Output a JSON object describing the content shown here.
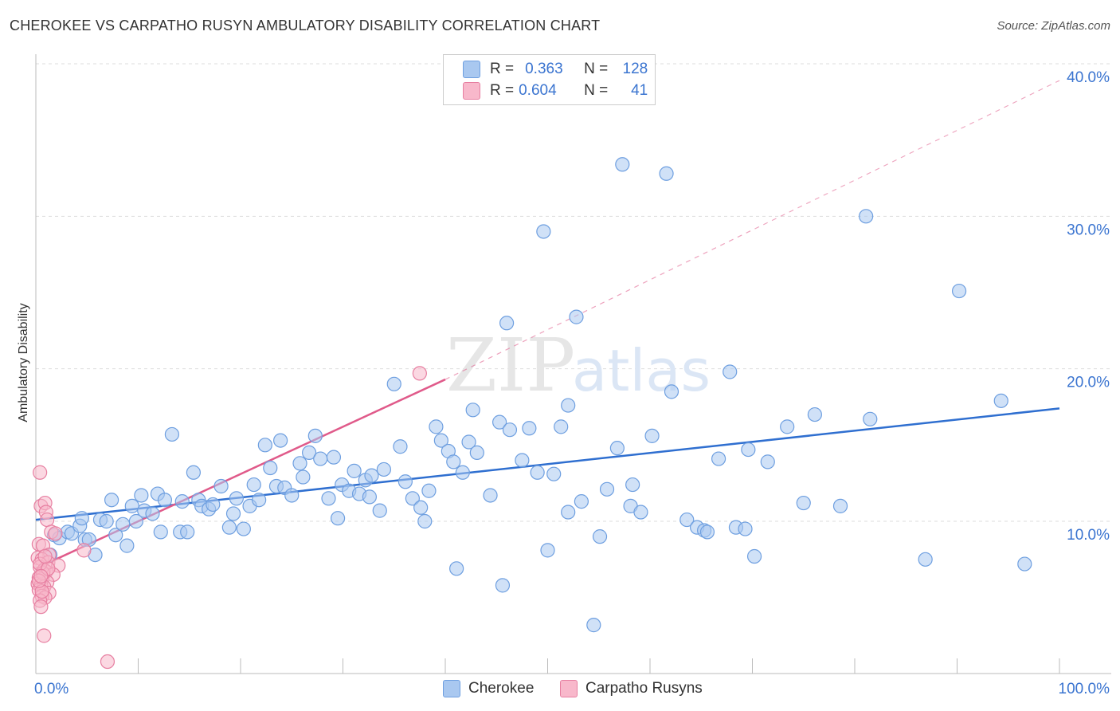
{
  "title": "CHEROKEE VS CARPATHO RUSYN AMBULATORY DISABILITY CORRELATION CHART",
  "source": "Source: ZipAtlas.com",
  "watermark": {
    "zip": "ZIP",
    "atlas": "atlas"
  },
  "legend": {
    "rows": [
      {
        "r_label": "R =",
        "r_value": "0.363",
        "n_label": "N =",
        "n_value": "128",
        "color": "#a9c8f0",
        "stroke": "#6e9fe0"
      },
      {
        "r_label": "R =",
        "r_value": "0.604",
        "n_label": "N =",
        "n_value": "41",
        "color": "#f8b8cb",
        "stroke": "#e77fa1"
      }
    ]
  },
  "bottom_legend": [
    {
      "label": "Cherokee",
      "color": "#a9c8f0",
      "stroke": "#6e9fe0"
    },
    {
      "label": "Carpatho Rusyns",
      "color": "#f8b8cb",
      "stroke": "#e77fa1"
    }
  ],
  "chart_data": {
    "type": "scatter",
    "title": "CHEROKEE VS CARPATHO RUSYN AMBULATORY DISABILITY CORRELATION CHART",
    "xlabel": "",
    "ylabel": "Ambulatory Disability",
    "xlim": [
      0,
      100
    ],
    "ylim": [
      0,
      42
    ],
    "x_tick_labels": [
      "0.0%",
      "100.0%"
    ],
    "y_ticks": [
      10,
      20,
      30,
      40
    ],
    "y_tick_labels": [
      "10.0%",
      "20.0%",
      "30.0%",
      "40.0%"
    ],
    "grid": true,
    "legend_position": "top-center",
    "series": [
      {
        "name": "Cherokee",
        "color": "#a9c8f0",
        "stroke": "#6e9fe0",
        "line_color": "#2f6fd0",
        "trend": {
          "x": [
            0,
            100
          ],
          "y": [
            10.1,
            17.4
          ]
        },
        "points": [
          [
            1.4,
            7.8
          ],
          [
            1.8,
            9.1
          ],
          [
            2.3,
            8.9
          ],
          [
            3.1,
            9.3
          ],
          [
            3.5,
            9.2
          ],
          [
            4.3,
            9.7
          ],
          [
            4.5,
            10.2
          ],
          [
            4.8,
            8.8
          ],
          [
            5.2,
            8.8
          ],
          [
            5.8,
            7.8
          ],
          [
            6.3,
            10.1
          ],
          [
            6.9,
            10.0
          ],
          [
            7.4,
            11.4
          ],
          [
            7.8,
            9.1
          ],
          [
            8.5,
            9.8
          ],
          [
            8.9,
            8.4
          ],
          [
            9.4,
            11.0
          ],
          [
            9.8,
            10.0
          ],
          [
            10.3,
            11.7
          ],
          [
            10.6,
            10.7
          ],
          [
            11.4,
            10.5
          ],
          [
            11.9,
            11.8
          ],
          [
            12.2,
            9.3
          ],
          [
            12.6,
            11.4
          ],
          [
            13.3,
            15.7
          ],
          [
            14.1,
            9.3
          ],
          [
            14.3,
            11.3
          ],
          [
            14.8,
            9.3
          ],
          [
            15.4,
            13.2
          ],
          [
            15.9,
            11.4
          ],
          [
            16.2,
            11.0
          ],
          [
            16.9,
            10.8
          ],
          [
            17.3,
            11.1
          ],
          [
            18.1,
            12.3
          ],
          [
            18.9,
            9.6
          ],
          [
            19.3,
            10.5
          ],
          [
            19.6,
            11.5
          ],
          [
            20.3,
            9.5
          ],
          [
            20.9,
            11.0
          ],
          [
            21.3,
            12.4
          ],
          [
            21.8,
            11.4
          ],
          [
            22.4,
            15.0
          ],
          [
            22.9,
            13.5
          ],
          [
            23.5,
            12.3
          ],
          [
            23.9,
            15.3
          ],
          [
            24.3,
            12.2
          ],
          [
            25.0,
            11.7
          ],
          [
            25.8,
            13.8
          ],
          [
            26.1,
            12.9
          ],
          [
            26.7,
            14.5
          ],
          [
            27.3,
            15.6
          ],
          [
            27.8,
            14.1
          ],
          [
            28.6,
            11.5
          ],
          [
            29.1,
            14.2
          ],
          [
            29.5,
            10.2
          ],
          [
            29.9,
            12.4
          ],
          [
            30.6,
            12.0
          ],
          [
            31.1,
            13.3
          ],
          [
            31.6,
            11.8
          ],
          [
            32.2,
            12.7
          ],
          [
            32.6,
            11.6
          ],
          [
            32.8,
            13.0
          ],
          [
            33.6,
            10.7
          ],
          [
            34.0,
            13.4
          ],
          [
            35.0,
            19.0
          ],
          [
            35.6,
            14.9
          ],
          [
            36.1,
            12.6
          ],
          [
            36.8,
            11.5
          ],
          [
            37.6,
            10.9
          ],
          [
            38.0,
            10.0
          ],
          [
            38.4,
            12.0
          ],
          [
            39.1,
            16.2
          ],
          [
            39.6,
            15.3
          ],
          [
            40.3,
            14.6
          ],
          [
            40.8,
            13.9
          ],
          [
            41.1,
            6.9
          ],
          [
            41.7,
            13.2
          ],
          [
            42.3,
            15.2
          ],
          [
            42.7,
            17.3
          ],
          [
            43.1,
            14.5
          ],
          [
            44.4,
            11.7
          ],
          [
            45.3,
            16.5
          ],
          [
            45.6,
            5.8
          ],
          [
            46.0,
            23.0
          ],
          [
            46.3,
            16.0
          ],
          [
            47.5,
            14.0
          ],
          [
            48.2,
            16.1
          ],
          [
            49.0,
            13.2
          ],
          [
            49.6,
            29.0
          ],
          [
            50.0,
            8.1
          ],
          [
            50.6,
            13.1
          ],
          [
            51.3,
            16.2
          ],
          [
            52.0,
            10.6
          ],
          [
            52.8,
            23.4
          ],
          [
            53.3,
            11.3
          ],
          [
            54.5,
            3.2
          ],
          [
            55.1,
            9.0
          ],
          [
            56.8,
            14.8
          ],
          [
            57.3,
            33.4
          ],
          [
            58.1,
            11.0
          ],
          [
            58.3,
            12.4
          ],
          [
            59.1,
            10.6
          ],
          [
            60.2,
            15.6
          ],
          [
            61.6,
            32.8
          ],
          [
            62.1,
            18.5
          ],
          [
            63.6,
            10.1
          ],
          [
            64.6,
            9.6
          ],
          [
            65.3,
            9.4
          ],
          [
            65.6,
            9.3
          ],
          [
            66.7,
            14.1
          ],
          [
            67.8,
            19.8
          ],
          [
            68.4,
            9.6
          ],
          [
            69.3,
            9.5
          ],
          [
            69.6,
            14.7
          ],
          [
            70.2,
            7.7
          ],
          [
            71.5,
            13.9
          ],
          [
            75.0,
            11.2
          ],
          [
            76.1,
            17.0
          ],
          [
            78.6,
            11.0
          ],
          [
            81.1,
            30.0
          ],
          [
            81.5,
            16.7
          ],
          [
            86.9,
            7.5
          ],
          [
            90.2,
            25.1
          ],
          [
            96.6,
            7.2
          ],
          [
            94.3,
            17.9
          ],
          [
            73.4,
            16.2
          ],
          [
            55.8,
            12.1
          ],
          [
            52.0,
            17.6
          ]
        ]
      },
      {
        "name": "Carpatho Rusyns",
        "color": "#f8b8cb",
        "stroke": "#e77fa1",
        "line_color": "#e05a8a",
        "trend": {
          "x": [
            0,
            40
          ],
          "y": [
            6.9,
            19.3
          ]
        },
        "trend_extension": {
          "x": [
            40,
            100
          ],
          "y": [
            19.3,
            38.9
          ]
        },
        "points": [
          [
            0.4,
            13.2
          ],
          [
            0.5,
            11.0
          ],
          [
            0.9,
            11.2
          ],
          [
            1.0,
            10.6
          ],
          [
            1.1,
            10.1
          ],
          [
            1.5,
            9.3
          ],
          [
            1.9,
            9.2
          ],
          [
            0.3,
            8.5
          ],
          [
            0.7,
            8.4
          ],
          [
            1.3,
            7.8
          ],
          [
            0.2,
            7.6
          ],
          [
            0.6,
            7.5
          ],
          [
            1.2,
            7.3
          ],
          [
            2.2,
            7.1
          ],
          [
            0.4,
            7.0
          ],
          [
            0.8,
            6.8
          ],
          [
            1.0,
            6.7
          ],
          [
            1.7,
            6.5
          ],
          [
            0.3,
            6.3
          ],
          [
            0.6,
            6.2
          ],
          [
            1.1,
            6.0
          ],
          [
            0.2,
            5.9
          ],
          [
            0.5,
            5.8
          ],
          [
            0.8,
            5.7
          ],
          [
            0.3,
            5.5
          ],
          [
            1.3,
            5.3
          ],
          [
            0.6,
            5.1
          ],
          [
            0.9,
            5.0
          ],
          [
            0.4,
            4.8
          ],
          [
            0.5,
            4.4
          ],
          [
            0.8,
            2.5
          ],
          [
            4.7,
            8.1
          ],
          [
            7.0,
            0.8
          ],
          [
            37.5,
            19.7
          ],
          [
            0.7,
            6.6
          ],
          [
            0.4,
            7.2
          ],
          [
            1.2,
            6.9
          ],
          [
            0.6,
            5.4
          ],
          [
            0.3,
            6.1
          ],
          [
            0.9,
            7.7
          ],
          [
            0.5,
            6.4
          ]
        ]
      }
    ]
  }
}
